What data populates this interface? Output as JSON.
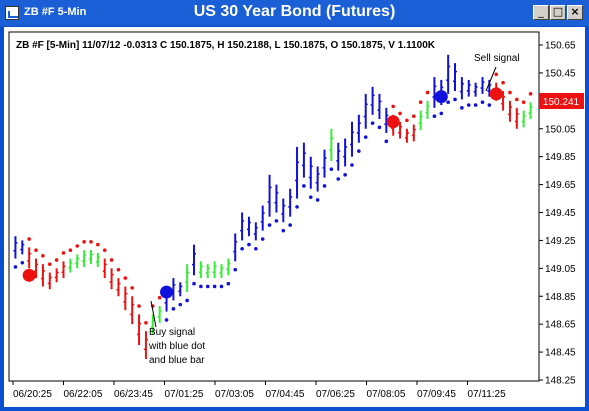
{
  "window": {
    "title": "ZB #F 5-Min",
    "chart_title": "US 30 Year Bond (Futures)",
    "minimize_glyph": "_",
    "maximize_glyph": "□",
    "close_glyph": "×"
  },
  "header_text": "ZB #F [5-Min] 11/07/12  -0.0313 C 150.1875, H 150.2188, L 150.1875, O 150.1875, V 1.1100K",
  "current_price_label": "150.241",
  "colors": {
    "window": "#0a4fd0",
    "up": "#33ee33",
    "down": "#ee1111",
    "neutral": "#1111dd",
    "price_tag": "#ee1111"
  },
  "annotations": {
    "buy": [
      "Buy signal",
      "with blue dot",
      "and blue bar"
    ],
    "sell": "Sell signal"
  },
  "chart_data": {
    "type": "ohlc",
    "title": "US 30 Year Bond (Futures)",
    "y_ticks": [
      "150.65",
      "150.45",
      "150.25",
      "150.05",
      "149.85",
      "149.65",
      "149.45",
      "149.25",
      "149.05",
      "148.85",
      "148.65",
      "148.45",
      "148.25"
    ],
    "ylim": [
      148.25,
      150.65
    ],
    "x_ticks": [
      "06/20:25",
      "06/22:05",
      "06/23:45",
      "07/01:25",
      "07/03:05",
      "07/04:45",
      "07/06:25",
      "07/08:05",
      "07/09:45",
      "07/11:25"
    ],
    "bars": [
      {
        "c": "blue",
        "h": 149.28,
        "l": 149.12
      },
      {
        "c": "blue",
        "h": 149.25,
        "l": 149.15
      },
      {
        "c": "red",
        "h": 149.2,
        "l": 149.05
      },
      {
        "c": "red",
        "h": 149.12,
        "l": 148.98
      },
      {
        "c": "red",
        "h": 149.08,
        "l": 148.92
      },
      {
        "c": "red",
        "h": 149.02,
        "l": 148.9
      },
      {
        "c": "red",
        "h": 149.05,
        "l": 148.95
      },
      {
        "c": "red",
        "h": 149.1,
        "l": 148.98
      },
      {
        "c": "green",
        "h": 149.12,
        "l": 149.02
      },
      {
        "c": "green",
        "h": 149.15,
        "l": 149.05
      },
      {
        "c": "green",
        "h": 149.18,
        "l": 149.06
      },
      {
        "c": "green",
        "h": 149.18,
        "l": 149.08
      },
      {
        "c": "green",
        "h": 149.16,
        "l": 149.06
      },
      {
        "c": "red",
        "h": 149.12,
        "l": 148.98
      },
      {
        "c": "red",
        "h": 149.05,
        "l": 148.9
      },
      {
        "c": "red",
        "h": 148.98,
        "l": 148.85
      },
      {
        "c": "red",
        "h": 148.92,
        "l": 148.75
      },
      {
        "c": "red",
        "h": 148.85,
        "l": 148.65
      },
      {
        "c": "red",
        "h": 148.72,
        "l": 148.5
      },
      {
        "c": "red",
        "h": 148.6,
        "l": 148.4
      },
      {
        "c": "green",
        "h": 148.72,
        "l": 148.58
      },
      {
        "c": "green",
        "h": 148.78,
        "l": 148.66
      },
      {
        "c": "blue",
        "h": 148.92,
        "l": 148.74
      },
      {
        "c": "blue",
        "h": 148.98,
        "l": 148.82
      },
      {
        "c": "blue",
        "h": 148.95,
        "l": 148.85
      },
      {
        "c": "green",
        "h": 149.08,
        "l": 148.88
      },
      {
        "c": "blue",
        "h": 149.22,
        "l": 149.0
      },
      {
        "c": "green",
        "h": 149.1,
        "l": 148.98
      },
      {
        "c": "green",
        "h": 149.08,
        "l": 148.98
      },
      {
        "c": "green",
        "h": 149.1,
        "l": 148.98
      },
      {
        "c": "green",
        "h": 149.08,
        "l": 148.98
      },
      {
        "c": "green",
        "h": 149.12,
        "l": 149.0
      },
      {
        "c": "blue",
        "h": 149.3,
        "l": 149.1
      },
      {
        "c": "blue",
        "h": 149.45,
        "l": 149.25
      },
      {
        "c": "blue",
        "h": 149.42,
        "l": 149.28
      },
      {
        "c": "blue",
        "h": 149.38,
        "l": 149.25
      },
      {
        "c": "blue",
        "h": 149.5,
        "l": 149.32
      },
      {
        "c": "blue",
        "h": 149.72,
        "l": 149.42
      },
      {
        "c": "blue",
        "h": 149.65,
        "l": 149.45
      },
      {
        "c": "blue",
        "h": 149.55,
        "l": 149.38
      },
      {
        "c": "blue",
        "h": 149.62,
        "l": 149.42
      },
      {
        "c": "blue",
        "h": 149.92,
        "l": 149.55
      },
      {
        "c": "blue",
        "h": 149.95,
        "l": 149.7
      },
      {
        "c": "blue",
        "h": 149.85,
        "l": 149.62
      },
      {
        "c": "blue",
        "h": 149.78,
        "l": 149.6
      },
      {
        "c": "blue",
        "h": 149.9,
        "l": 149.7
      },
      {
        "c": "green",
        "h": 150.05,
        "l": 149.82
      },
      {
        "c": "blue",
        "h": 149.95,
        "l": 149.75
      },
      {
        "c": "blue",
        "h": 149.98,
        "l": 149.78
      },
      {
        "c": "blue",
        "h": 150.1,
        "l": 149.85
      },
      {
        "c": "blue",
        "h": 150.15,
        "l": 149.95
      },
      {
        "c": "blue",
        "h": 150.3,
        "l": 150.05
      },
      {
        "c": "blue",
        "h": 150.35,
        "l": 150.15
      },
      {
        "c": "blue",
        "h": 150.3,
        "l": 150.12
      },
      {
        "c": "blue",
        "h": 150.2,
        "l": 150.02
      },
      {
        "c": "red",
        "h": 150.15,
        "l": 150.0
      },
      {
        "c": "red",
        "h": 150.1,
        "l": 149.98
      },
      {
        "c": "red",
        "h": 150.05,
        "l": 149.95
      },
      {
        "c": "red",
        "h": 150.08,
        "l": 149.96
      },
      {
        "c": "green",
        "h": 150.18,
        "l": 150.04
      },
      {
        "c": "green",
        "h": 150.25,
        "l": 150.12
      },
      {
        "c": "blue",
        "h": 150.42,
        "l": 150.2
      },
      {
        "c": "blue",
        "h": 150.4,
        "l": 150.22
      },
      {
        "c": "blue",
        "h": 150.58,
        "l": 150.3
      },
      {
        "c": "blue",
        "h": 150.52,
        "l": 150.32
      },
      {
        "c": "blue",
        "h": 150.42,
        "l": 150.26
      },
      {
        "c": "blue",
        "h": 150.4,
        "l": 150.28
      },
      {
        "c": "blue",
        "h": 150.38,
        "l": 150.28
      },
      {
        "c": "blue",
        "h": 150.42,
        "l": 150.3
      },
      {
        "c": "blue",
        "h": 150.4,
        "l": 150.28
      },
      {
        "c": "red",
        "h": 150.38,
        "l": 150.25
      },
      {
        "c": "red",
        "h": 150.32,
        "l": 150.18
      },
      {
        "c": "red",
        "h": 150.25,
        "l": 150.1
      },
      {
        "c": "red",
        "h": 150.2,
        "l": 150.05
      },
      {
        "c": "green",
        "h": 150.18,
        "l": 150.06
      },
      {
        "c": "green",
        "h": 150.24,
        "l": 150.12
      }
    ],
    "signals": [
      {
        "type": "sell",
        "bar": 2,
        "price": 149.0
      },
      {
        "type": "buy",
        "bar": 22,
        "price": 148.88
      },
      {
        "type": "sell",
        "bar": 55,
        "price": 150.1
      },
      {
        "type": "buy",
        "bar": 62,
        "price": 150.28
      },
      {
        "type": "sell",
        "bar": 70,
        "price": 150.3
      }
    ]
  }
}
